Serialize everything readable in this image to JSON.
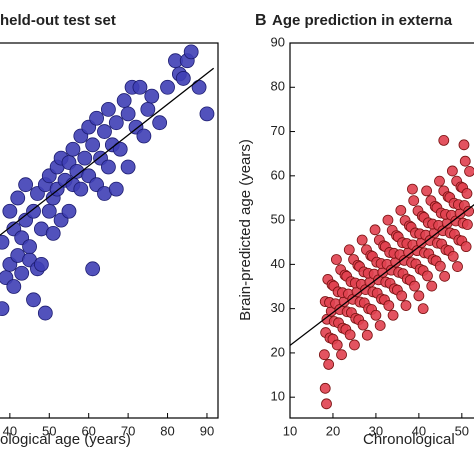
{
  "chart_data": [
    {
      "type": "scatter",
      "title": "held-out test set",
      "x_label": "ological age (years)",
      "xlim": [
        37.5,
        92.8
      ],
      "ylim": [
        5.3,
        90
      ],
      "xticks": [
        40,
        50,
        60,
        70,
        80,
        90
      ],
      "series": [
        {
          "color": "#3f3fb5",
          "x": [
            38,
            38,
            39,
            40,
            40,
            41,
            41,
            42,
            42,
            43,
            43,
            44,
            44,
            45,
            45,
            46,
            46,
            47,
            47,
            48,
            48,
            49,
            49,
            50,
            50,
            51,
            51,
            52,
            52,
            53,
            53,
            54,
            55,
            55,
            56,
            56,
            57,
            58,
            58,
            59,
            60,
            60,
            61,
            61,
            62,
            62,
            63,
            64,
            64,
            65,
            65,
            66,
            67,
            67,
            68,
            69,
            70,
            70,
            71,
            72,
            73,
            74,
            75,
            76,
            78,
            80,
            82,
            83,
            84,
            85,
            86,
            88,
            90
          ],
          "values": [
            30,
            45,
            37,
            40,
            52,
            35,
            48,
            42,
            55,
            38,
            46,
            50,
            58,
            41,
            44,
            32,
            52,
            39,
            56,
            40,
            48,
            29,
            58,
            52,
            60,
            55,
            47,
            62,
            57,
            50,
            64,
            59,
            63,
            52,
            58,
            66,
            61,
            57,
            69,
            64,
            60,
            71,
            39,
            67,
            58,
            73,
            64,
            70,
            56,
            75,
            62,
            67,
            57,
            72,
            66,
            77,
            74,
            62,
            80,
            71,
            80,
            69,
            75,
            78,
            72,
            80,
            86,
            83,
            82,
            86,
            88,
            80,
            74
          ]
        }
      ],
      "fit_line": {
        "x": [
          37.5,
          91.7
        ],
        "values": [
          46.6,
          84.3
        ]
      }
    },
    {
      "type": "scatter",
      "panel_label": "B",
      "title": "Age prediction in externa",
      "x_label": "Chronological",
      "y_label": "Brain-predicted age (years)",
      "xlim": [
        10,
        53.3
      ],
      "ylim": [
        5.3,
        90
      ],
      "xticks": [
        10,
        20,
        30,
        40,
        50
      ],
      "yticks": [
        10,
        20,
        30,
        40,
        50,
        60,
        70,
        80,
        90
      ],
      "series": [
        {
          "color": "#e0404f",
          "x": [
            18,
            18.3,
            18.6,
            18.2,
            18.8,
            19,
            19.3,
            19.6,
            19.2,
            19.8,
            20,
            20.3,
            20.6,
            20.2,
            20.8,
            21,
            21.3,
            21.6,
            21.2,
            21.8,
            22,
            22.3,
            22.6,
            22.2,
            22.8,
            23,
            23.3,
            23.6,
            23.2,
            23.8,
            24,
            24.3,
            24.6,
            24.2,
            24.8,
            25,
            25.3,
            25.6,
            25.2,
            25.8,
            26,
            26.3,
            26.6,
            26.2,
            26.8,
            27,
            27.3,
            27.6,
            27.2,
            27.8,
            28,
            28.3,
            28.6,
            28.2,
            28.8,
            29,
            29.3,
            29.6,
            29.2,
            29.8,
            30,
            30.3,
            30.6,
            30.2,
            30.8,
            31,
            31.3,
            31.6,
            31.2,
            31.8,
            32,
            32.3,
            32.6,
            32.2,
            32.8,
            33,
            33.3,
            33.6,
            33.2,
            33.8,
            34,
            34.3,
            34.6,
            34.2,
            34.8,
            35,
            35.3,
            35.6,
            35.2,
            35.8,
            36,
            36.3,
            36.6,
            36.2,
            36.8,
            37,
            37.3,
            37.6,
            37.2,
            37.8,
            38,
            38.3,
            38.6,
            38.2,
            38.8,
            39,
            39.3,
            39.6,
            39.2,
            39.8,
            40,
            40.3,
            40.6,
            40.2,
            40.8,
            41,
            41.3,
            41.6,
            41.2,
            41.8,
            42,
            42.3,
            42.6,
            42.2,
            42.8,
            43,
            43.3,
            43.6,
            43.2,
            43.8,
            44,
            44.3,
            44.6,
            44.2,
            44.8,
            45,
            45.3,
            45.6,
            45.2,
            45.8,
            46,
            46.3,
            46.6,
            46.2,
            46.8,
            47,
            47.3,
            47.6,
            47.2,
            47.8,
            48,
            48.3,
            48.6,
            48.2,
            48.8,
            49,
            49.3,
            49.6,
            49.2,
            49.8,
            50,
            50.3,
            50.6,
            50.2,
            50.8,
            51,
            51.3,
            51.6,
            51.2,
            51.8,
            18.5,
            18.2,
            38.5,
            45.8,
            50.5,
            41
          ],
          "values": [
            19.6,
            24.6,
            27.6,
            31.6,
            36.6,
            17.4,
            23.4,
            29.4,
            31.4,
            35.4,
            23.1,
            27.1,
            31.1,
            35.1,
            41.1,
            21.8,
            26.8,
            29.8,
            33.8,
            38.8,
            19.6,
            25.6,
            31.6,
            33.6,
            37.6,
            25.3,
            29.3,
            33.3,
            37.3,
            43.3,
            24.1,
            29.1,
            32.1,
            36.1,
            41.1,
            21.8,
            27.8,
            33.8,
            35.8,
            39.8,
            27.5,
            31.5,
            35.5,
            39.5,
            45.5,
            26.3,
            31.3,
            34.3,
            38.3,
            43.3,
            24,
            30,
            36,
            38,
            42,
            29.8,
            33.8,
            37.8,
            41.8,
            47.8,
            28.5,
            33.5,
            36.5,
            40.5,
            45.5,
            26.2,
            32.2,
            38.2,
            40.2,
            44.2,
            32,
            36,
            40,
            44,
            50,
            30.7,
            35.7,
            38.7,
            42.7,
            47.7,
            28.5,
            34.5,
            40.5,
            42.5,
            46.5,
            34.2,
            38.2,
            42.2,
            46.2,
            52.2,
            32.9,
            37.9,
            40.9,
            44.9,
            49.9,
            30.7,
            36.7,
            42.7,
            44.7,
            48.7,
            36.4,
            40.4,
            44.4,
            48.4,
            54.4,
            35.1,
            40.1,
            43.1,
            47.1,
            52.1,
            32.9,
            38.9,
            44.9,
            46.9,
            50.9,
            38.6,
            42.6,
            46.6,
            50.6,
            56.6,
            37.4,
            42.4,
            45.4,
            49.4,
            54.4,
            35.1,
            41.1,
            47.1,
            49.1,
            53.1,
            40.8,
            44.8,
            48.8,
            52.8,
            58.8,
            39.6,
            44.6,
            47.6,
            51.6,
            56.6,
            37.3,
            43.3,
            49.3,
            51.3,
            55.3,
            43.1,
            47.1,
            51.1,
            55.1,
            61.1,
            41.8,
            46.8,
            49.8,
            53.8,
            58.8,
            39.5,
            45.5,
            51.5,
            53.5,
            57.5,
            45.3,
            49.3,
            53.3,
            57.3,
            63.3,
            44,
            49,
            52,
            56,
            61,
            8.5,
            12,
            57,
            68,
            67,
            30
          ]
        }
      ],
      "fit_line": {
        "x": [
          10,
          53.3
        ],
        "values": [
          21.7,
          53.8
        ]
      }
    }
  ]
}
